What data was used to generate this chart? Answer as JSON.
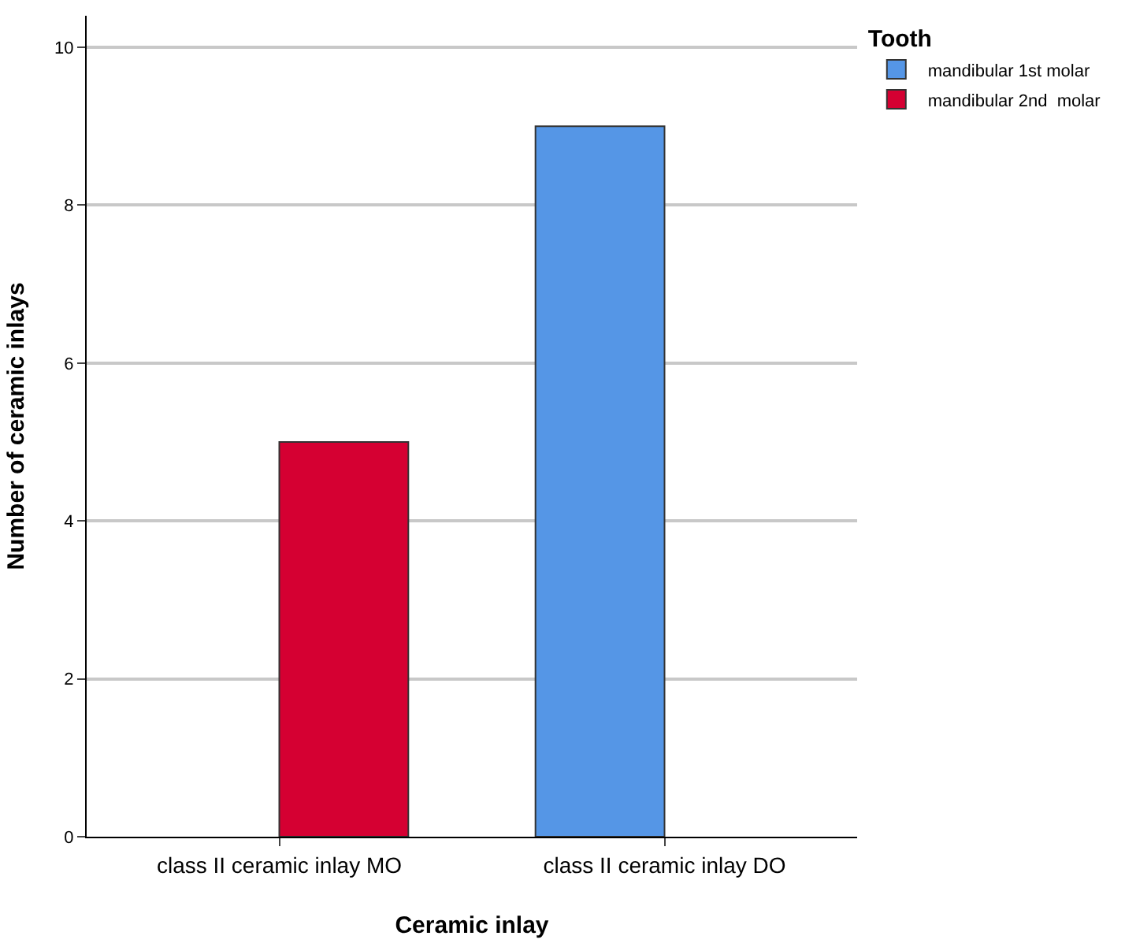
{
  "chart_data": {
    "type": "bar",
    "xlabel": "Ceramic inlay",
    "ylabel": "Number of ceramic inlays",
    "legend_title": "Tooth",
    "categories": [
      "class II ceramic inlay MO",
      "class II ceramic inlay DO"
    ],
    "series": [
      {
        "name": "mandibular 1st molar",
        "color": "#5596e6",
        "values": [
          null,
          9
        ]
      },
      {
        "name": "mandibular 2nd  molar",
        "color": "#d50032",
        "values": [
          5,
          null
        ]
      }
    ],
    "ylim": [
      0,
      10.4
    ],
    "yticks": [
      0,
      2,
      4,
      6,
      8,
      10
    ],
    "grid": "y",
    "legend": "top right"
  }
}
